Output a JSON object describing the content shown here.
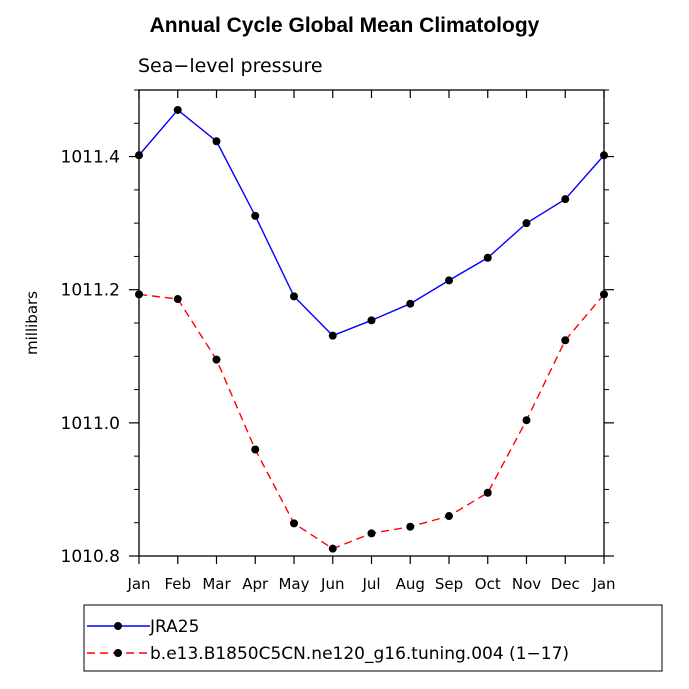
{
  "chart_data": {
    "type": "line",
    "title": "Annual Cycle Global Mean Climatology",
    "subtitle": "Sea−level pressure",
    "ylabel": "millibars",
    "xlabel": "",
    "categories": [
      "Jan",
      "Feb",
      "Mar",
      "Apr",
      "May",
      "Jun",
      "Jul",
      "Aug",
      "Sep",
      "Oct",
      "Nov",
      "Dec",
      "Jan"
    ],
    "ylim": [
      1010.8,
      1011.5
    ],
    "yticks": [
      1010.8,
      1011.0,
      1011.2,
      1011.4
    ],
    "ytick_labels": [
      "1010.8",
      "1011.0",
      "1011.2",
      "1011.4"
    ],
    "grid": false,
    "legend_position": "bottom",
    "series": [
      {
        "name": "JRA25",
        "color": "#0000ff",
        "dash": "solid",
        "values": [
          1011.402,
          1011.47,
          1011.423,
          1011.311,
          1011.19,
          1011.131,
          1011.154,
          1011.179,
          1011.214,
          1011.248,
          1011.3,
          1011.336,
          1011.402
        ]
      },
      {
        "name": "b.e13.B1850C5CN.ne120_g16.tuning.004 (1−17)",
        "color": "#ff0000",
        "dash": "dashed",
        "values": [
          1011.193,
          1011.186,
          1011.095,
          1010.96,
          1010.849,
          1010.811,
          1010.834,
          1010.844,
          1010.86,
          1010.895,
          1011.004,
          1011.124,
          1011.193
        ]
      }
    ]
  }
}
